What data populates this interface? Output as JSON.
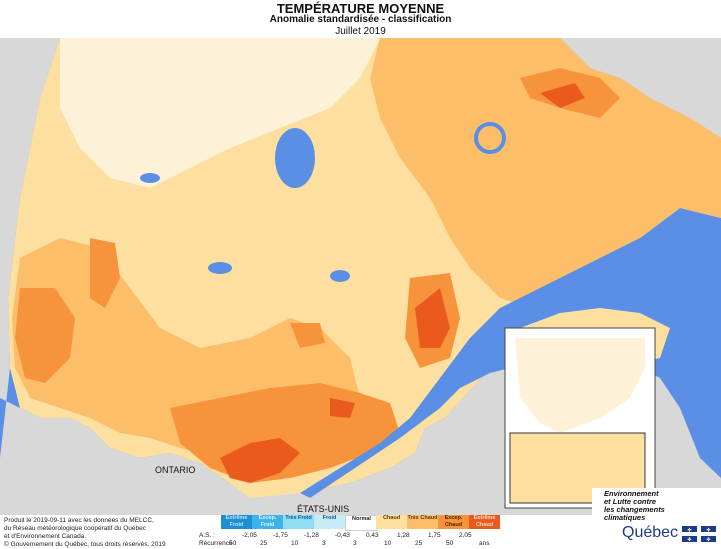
{
  "header": {
    "title": "TEMPÉRATURE MOYENNE",
    "subtitle": "Anomalie standardisée - classification",
    "date": "Juillet 2019"
  },
  "map": {
    "labels": {
      "ontario": "ONTARIO",
      "usa": "ÉTATS-UNIS"
    },
    "colors": {
      "water": "#5b8fe6",
      "land_outside": "#d8d8d8",
      "normal": "#fdf2d8",
      "chaud": "#fde0a0",
      "tres_chaud": "#fdbe6a",
      "excep_chaud": "#f7943b",
      "extreme_chaud": "#ea5a1d"
    }
  },
  "footer": {
    "credit_lines": [
      "Produit le 2019-09-11 avec les données du MELCC,",
      "du Réseau météorologique coopératif du Québec",
      "et d'Environnement Canada."
    ],
    "copyright": "© Gouvernement du Québec, tous droits réservés, 2019",
    "legend": {
      "classes": [
        {
          "label": "Extrême Froid",
          "color": "#1f8fd3",
          "text_color": "#bfe4ff"
        },
        {
          "label": "Excep. Froid",
          "color": "#3bb4ec",
          "text_color": "#e0f4ff"
        },
        {
          "label": "Très Froid",
          "color": "#8fdcf3",
          "text_color": "#0b5a8a"
        },
        {
          "label": "Froid",
          "color": "#c8ecf7",
          "text_color": "#0b5a8a"
        },
        {
          "label": "Normal",
          "color": "#ffffff",
          "text_color": "#222222"
        },
        {
          "label": "Chaud",
          "color": "#fde0a0",
          "text_color": "#5a3a00"
        },
        {
          "label": "Très Chaud",
          "color": "#fdbe6a",
          "text_color": "#5a3a00"
        },
        {
          "label": "Excep. Chaud",
          "color": "#f7943b",
          "text_color": "#4a2000"
        },
        {
          "label": "Extrême Chaud",
          "color": "#ea5a1d",
          "text_color": "#ffe0c8"
        }
      ],
      "as_label": "A.S. :",
      "as_ticks": [
        "-2,05",
        "-1,75",
        "-1,28",
        "-0,43",
        "0,43",
        "1,28",
        "1,75",
        "2,05"
      ],
      "rec_label": "Récurrence :",
      "rec_ticks": [
        "50",
        "25",
        "10",
        "3",
        "3",
        "10",
        "25",
        "50"
      ],
      "rec_unit": "ans"
    }
  },
  "brand": {
    "tagline_lines": [
      "Environnement",
      "et Lutte contre",
      "les changements",
      "climatiques"
    ],
    "name": "Québec"
  }
}
